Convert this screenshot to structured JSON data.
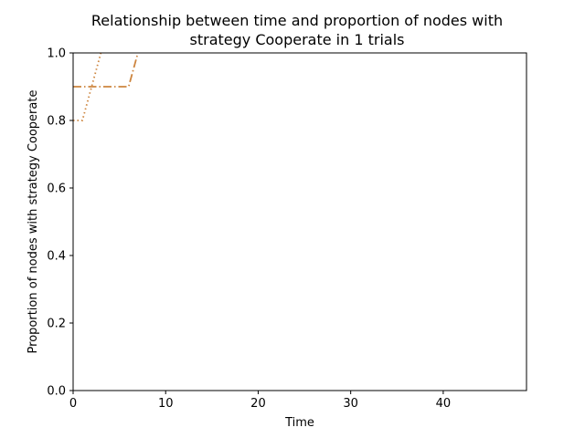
{
  "chart_data": {
    "type": "line",
    "title_line1": "Relationship between time and proportion of nodes with",
    "title_line2": "strategy Cooperate in 1 trials",
    "xlabel": "Time",
    "ylabel": "Proportion of nodes with strategy Cooperate",
    "xlim": [
      0,
      49
    ],
    "ylim": [
      0,
      1.0
    ],
    "xticks": [
      0,
      10,
      20,
      30,
      40
    ],
    "xtick_labels": [
      "0",
      "10",
      "20",
      "30",
      "40"
    ],
    "yticks": [
      0.0,
      0.2,
      0.4,
      0.6,
      0.8,
      1.0
    ],
    "ytick_labels": [
      "0.0",
      "0.2",
      "0.4",
      "0.6",
      "0.8",
      "1.0"
    ],
    "grid": false,
    "series": [
      {
        "style": "dotted",
        "color": "#cd853f",
        "x": [
          0,
          1,
          2,
          3
        ],
        "y": [
          0.8,
          0.8,
          0.9,
          1.0
        ]
      },
      {
        "style": "dashdot",
        "color": "#cd853f",
        "x": [
          0,
          1,
          2,
          3,
          4,
          5,
          6,
          7
        ],
        "y": [
          0.9,
          0.9,
          0.9,
          0.9,
          0.9,
          0.9,
          0.9,
          1.0
        ]
      }
    ]
  }
}
